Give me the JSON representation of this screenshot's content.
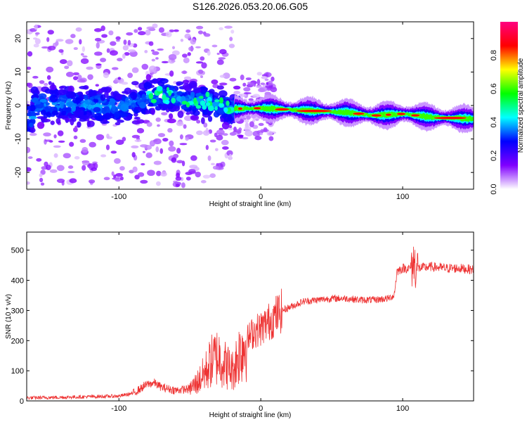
{
  "title": "S126.2026.053.20.06.G05",
  "chart_data": [
    {
      "type": "heatmap",
      "name": "spectrogram",
      "xlabel": "Height of straight line (km)",
      "ylabel": "Frequency (Hz)",
      "xlim": [
        -165,
        150
      ],
      "ylim": [
        -25,
        25
      ],
      "xticks": [
        -100,
        0,
        100
      ],
      "xtick_labels": [
        "-100",
        "0",
        "100"
      ],
      "yticks": [
        -20,
        -10,
        0,
        10,
        20
      ],
      "ytick_labels": [
        "-20",
        "-10",
        "0",
        "10",
        "20"
      ],
      "ridge_points": [
        {
          "x": -160,
          "freq": 0.5
        },
        {
          "x": -130,
          "freq": 0.3
        },
        {
          "x": -100,
          "freq": -0.5
        },
        {
          "x": -80,
          "freq": 2.0
        },
        {
          "x": -70,
          "freq": 3.5
        },
        {
          "x": -55,
          "freq": 1.5
        },
        {
          "x": -40,
          "freq": 1.5
        },
        {
          "x": -20,
          "freq": -1.0
        },
        {
          "x": 0,
          "freq": -0.8
        },
        {
          "x": 30,
          "freq": -1.5
        },
        {
          "x": 60,
          "freq": -2.0
        },
        {
          "x": 80,
          "freq": -3.0
        },
        {
          "x": 100,
          "freq": -2.5
        },
        {
          "x": 120,
          "freq": -3.5
        },
        {
          "x": 150,
          "freq": -4.0
        }
      ],
      "colorbar": {
        "label": "Normalized spectral amplitude",
        "lim": [
          0,
          1
        ],
        "ticks": [
          0.0,
          0.2,
          0.4,
          0.6,
          0.8
        ],
        "tick_labels": [
          "0.0",
          "0.2",
          "0.4",
          "0.6",
          "0.8"
        ],
        "colors": [
          "#ffffff",
          "#8000ff",
          "#0000ff",
          "#00ffff",
          "#00ff00",
          "#ffff00",
          "#ff0000",
          "#ff0080"
        ]
      }
    },
    {
      "type": "line",
      "name": "snr",
      "xlabel": "Height of straight line (km)",
      "ylabel": "SNR (10 * v/v)",
      "xlim": [
        -165,
        150
      ],
      "ylim": [
        0,
        560
      ],
      "xticks": [
        -100,
        0,
        100
      ],
      "xtick_labels": [
        "-100",
        "0",
        "100"
      ],
      "yticks": [
        0,
        100,
        200,
        300,
        400,
        500
      ],
      "ytick_labels": [
        "0",
        "100",
        "200",
        "300",
        "400",
        "500"
      ],
      "color": "#ee3333",
      "series": [
        {
          "name": "SNR",
          "x": [
            -165,
            -140,
            -120,
            -100,
            -90,
            -80,
            -75,
            -70,
            -60,
            -50,
            -45,
            -40,
            -35,
            -30,
            -25,
            -20,
            -15,
            -10,
            -5,
            0,
            5,
            10,
            15,
            20,
            25,
            30,
            40,
            50,
            60,
            70,
            80,
            90,
            94,
            96,
            100,
            105,
            108,
            110,
            120,
            130,
            140,
            150
          ],
          "y": [
            10,
            12,
            14,
            16,
            25,
            55,
            60,
            45,
            35,
            40,
            60,
            90,
            130,
            150,
            120,
            100,
            160,
            200,
            230,
            240,
            260,
            280,
            300,
            310,
            320,
            330,
            335,
            340,
            340,
            335,
            335,
            340,
            350,
            430,
            440,
            440,
            460,
            440,
            445,
            440,
            440,
            435
          ]
        }
      ]
    }
  ]
}
